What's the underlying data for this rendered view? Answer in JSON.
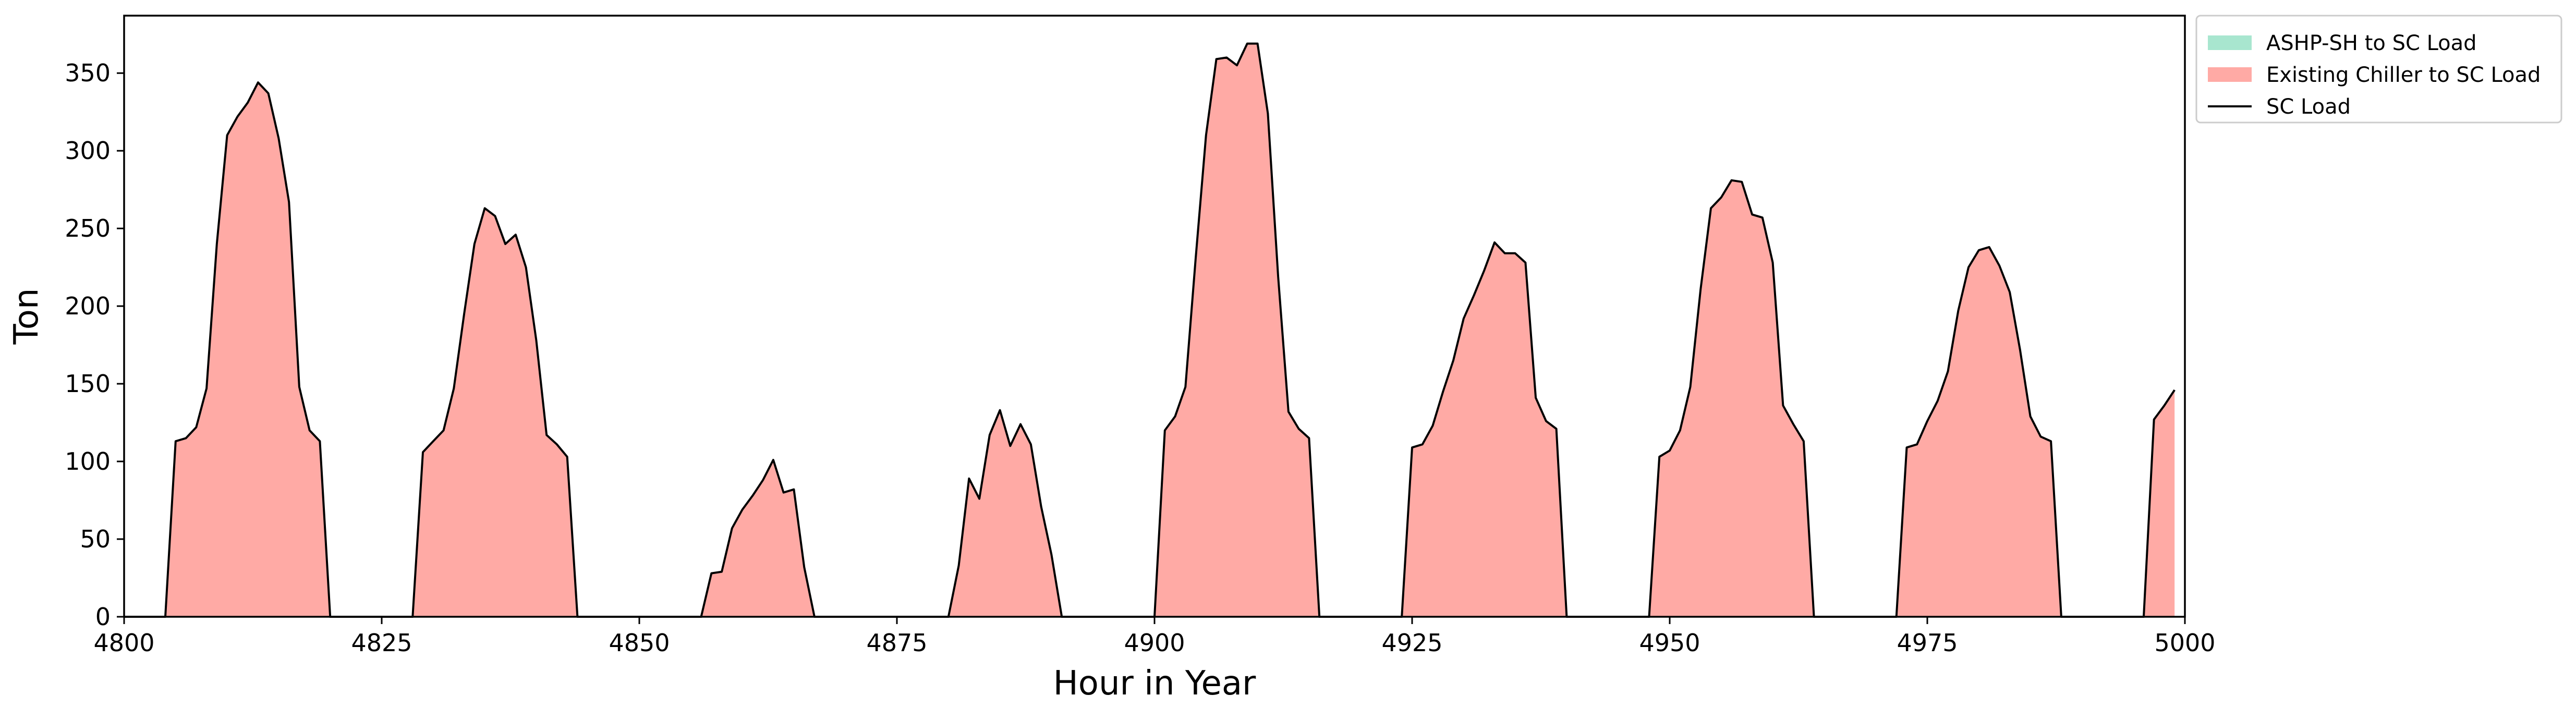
{
  "chart_data": {
    "type": "area",
    "xlabel": "Hour in Year",
    "ylabel": "Ton",
    "xlim": [
      4800,
      5000
    ],
    "ylim": [
      0,
      387
    ],
    "x_ticks": [
      4800,
      4825,
      4850,
      4875,
      4900,
      4925,
      4950,
      4975,
      5000
    ],
    "y_ticks": [
      0,
      50,
      100,
      150,
      200,
      250,
      300,
      350
    ],
    "grid": false,
    "legend_position": "outside top-right",
    "legend": [
      {
        "label": "ASHP-SH to SC Load",
        "kind": "patch",
        "color": "#a8e6cf"
      },
      {
        "label": "Existing Chiller to SC Load",
        "kind": "patch",
        "color": "#ffaaa5"
      },
      {
        "label": "SC Load",
        "kind": "line",
        "color": "#000000"
      }
    ],
    "series": [
      {
        "name": "ASHP-SH to SC Load",
        "kind": "area",
        "color": "#a8e6cf",
        "x": [
          4800,
          5000
        ],
        "y": [
          0,
          0
        ]
      },
      {
        "name": "Existing Chiller to SC Load",
        "kind": "area",
        "color": "#ffaaa5",
        "x": [
          4800,
          4804,
          4805,
          4806,
          4807,
          4808,
          4809,
          4810,
          4811,
          4812,
          4813,
          4814,
          4815,
          4816,
          4817,
          4818,
          4819,
          4820,
          4828,
          4829,
          4830,
          4831,
          4832,
          4833,
          4834,
          4835,
          4836,
          4837,
          4838,
          4839,
          4840,
          4841,
          4842,
          4843,
          4844,
          4856,
          4857,
          4858,
          4859,
          4860,
          4861,
          4862,
          4863,
          4864,
          4865,
          4866,
          4867,
          4880,
          4881,
          4882,
          4883,
          4884,
          4885,
          4886,
          4887,
          4888,
          4889,
          4890,
          4891,
          4900,
          4901,
          4902,
          4903,
          4904,
          4905,
          4906,
          4907,
          4908,
          4909,
          4910,
          4911,
          4912,
          4913,
          4914,
          4915,
          4916,
          4924,
          4925,
          4926,
          4927,
          4928,
          4929,
          4930,
          4931,
          4932,
          4933,
          4934,
          4935,
          4936,
          4937,
          4938,
          4939,
          4940,
          4948,
          4949,
          4950,
          4951,
          4952,
          4953,
          4954,
          4955,
          4956,
          4957,
          4958,
          4959,
          4960,
          4961,
          4962,
          4963,
          4964,
          4972,
          4973,
          4974,
          4975,
          4976,
          4977,
          4978,
          4979,
          4980,
          4981,
          4982,
          4983,
          4984,
          4985,
          4986,
          4987,
          4988,
          4996,
          4997,
          4998,
          4999
        ],
        "y": [
          0,
          0,
          113,
          115,
          122,
          147,
          240,
          310,
          322,
          331,
          344,
          337,
          308,
          267,
          148,
          120,
          113,
          0,
          0,
          106,
          113,
          120,
          147,
          195,
          240,
          263,
          258,
          240,
          246,
          225,
          178,
          117,
          111,
          103,
          0,
          0,
          28,
          29,
          57,
          69,
          78,
          88,
          101,
          80,
          82,
          32,
          0,
          0,
          33,
          89,
          76,
          117,
          133,
          110,
          124,
          111,
          71,
          40,
          0,
          0,
          120,
          129,
          148,
          231,
          310,
          359,
          360,
          355,
          369,
          369,
          324,
          219,
          132,
          121,
          115,
          0,
          0,
          109,
          111,
          123,
          145,
          165,
          192,
          207,
          223,
          241,
          234,
          234,
          228,
          141,
          126,
          121,
          0,
          0,
          103,
          107,
          120,
          148,
          211,
          263,
          270,
          281,
          280,
          259,
          257,
          228,
          136,
          124,
          113,
          0,
          0,
          109,
          111,
          126,
          139,
          158,
          197,
          225,
          236,
          238,
          226,
          209,
          172,
          129,
          116,
          113,
          0,
          0,
          127,
          136,
          146
        ]
      },
      {
        "name": "SC Load",
        "kind": "line",
        "color": "#000000",
        "x": [
          4800,
          4804,
          4805,
          4806,
          4807,
          4808,
          4809,
          4810,
          4811,
          4812,
          4813,
          4814,
          4815,
          4816,
          4817,
          4818,
          4819,
          4820,
          4828,
          4829,
          4830,
          4831,
          4832,
          4833,
          4834,
          4835,
          4836,
          4837,
          4838,
          4839,
          4840,
          4841,
          4842,
          4843,
          4844,
          4856,
          4857,
          4858,
          4859,
          4860,
          4861,
          4862,
          4863,
          4864,
          4865,
          4866,
          4867,
          4880,
          4881,
          4882,
          4883,
          4884,
          4885,
          4886,
          4887,
          4888,
          4889,
          4890,
          4891,
          4900,
          4901,
          4902,
          4903,
          4904,
          4905,
          4906,
          4907,
          4908,
          4909,
          4910,
          4911,
          4912,
          4913,
          4914,
          4915,
          4916,
          4924,
          4925,
          4926,
          4927,
          4928,
          4929,
          4930,
          4931,
          4932,
          4933,
          4934,
          4935,
          4936,
          4937,
          4938,
          4939,
          4940,
          4948,
          4949,
          4950,
          4951,
          4952,
          4953,
          4954,
          4955,
          4956,
          4957,
          4958,
          4959,
          4960,
          4961,
          4962,
          4963,
          4964,
          4972,
          4973,
          4974,
          4975,
          4976,
          4977,
          4978,
          4979,
          4980,
          4981,
          4982,
          4983,
          4984,
          4985,
          4986,
          4987,
          4988,
          4996,
          4997,
          4998,
          4999
        ],
        "y": [
          0,
          0,
          113,
          115,
          122,
          147,
          240,
          310,
          322,
          331,
          344,
          337,
          308,
          267,
          148,
          120,
          113,
          0,
          0,
          106,
          113,
          120,
          147,
          195,
          240,
          263,
          258,
          240,
          246,
          225,
          178,
          117,
          111,
          103,
          0,
          0,
          28,
          29,
          57,
          69,
          78,
          88,
          101,
          80,
          82,
          32,
          0,
          0,
          33,
          89,
          76,
          117,
          133,
          110,
          124,
          111,
          71,
          40,
          0,
          0,
          120,
          129,
          148,
          231,
          310,
          359,
          360,
          355,
          369,
          369,
          324,
          219,
          132,
          121,
          115,
          0,
          0,
          109,
          111,
          123,
          145,
          165,
          192,
          207,
          223,
          241,
          234,
          234,
          228,
          141,
          126,
          121,
          0,
          0,
          103,
          107,
          120,
          148,
          211,
          263,
          270,
          281,
          280,
          259,
          257,
          228,
          136,
          124,
          113,
          0,
          0,
          109,
          111,
          126,
          139,
          158,
          197,
          225,
          236,
          238,
          226,
          209,
          172,
          129,
          116,
          113,
          0,
          0,
          127,
          136,
          146
        ]
      }
    ]
  }
}
